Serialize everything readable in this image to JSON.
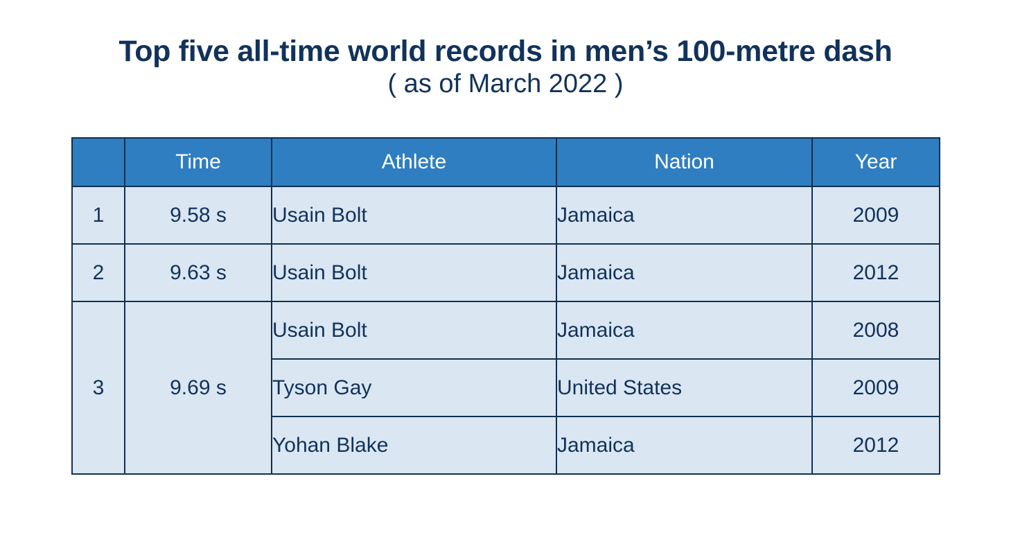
{
  "title": "Top five all-time world records in men’s 100-metre dash",
  "subtitle": "( as of March 2022 )",
  "table": {
    "headers": [
      "",
      "Time",
      "Athlete",
      "Nation",
      "Year"
    ],
    "groups": [
      {
        "rank": "1",
        "time": "9.58 s",
        "rows": [
          {
            "athlete": "Usain Bolt",
            "nation": "Jamaica",
            "year": "2009"
          }
        ]
      },
      {
        "rank": "2",
        "time": "9.63 s",
        "rows": [
          {
            "athlete": "Usain Bolt",
            "nation": "Jamaica",
            "year": "2012"
          }
        ]
      },
      {
        "rank": "3",
        "time": "9.69 s",
        "rows": [
          {
            "athlete": "Usain Bolt",
            "nation": "Jamaica",
            "year": "2008"
          },
          {
            "athlete": "Tyson Gay",
            "nation": "United States",
            "year": "2009"
          },
          {
            "athlete": "Yohan Blake",
            "nation": "Jamaica",
            "year": "2012"
          }
        ]
      }
    ]
  },
  "colors": {
    "header_bg": "#2f7ec1",
    "row_bg": "#dae6f2",
    "border": "#10304f",
    "text": "#11325a"
  }
}
